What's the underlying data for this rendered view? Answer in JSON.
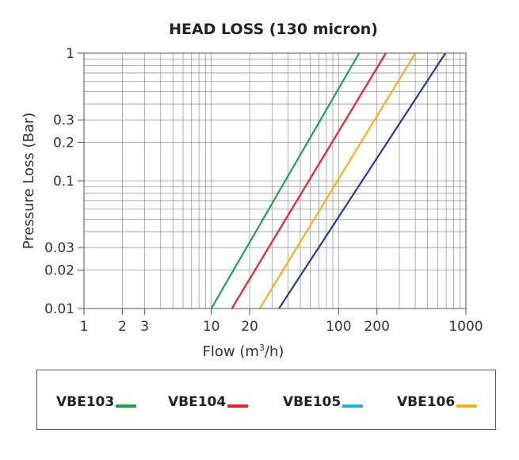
{
  "chart_data": {
    "type": "line",
    "title": "HEAD LOSS (130 micron)",
    "xlabel": "Flow (m³/h)",
    "ylabel": "Pressure Loss (Bar)",
    "x_scale": "log",
    "y_scale": "log",
    "xlim": [
      1,
      1000
    ],
    "ylim": [
      0.01,
      1
    ],
    "grid": true,
    "x_ticks": [
      {
        "value": 1,
        "label": "1"
      },
      {
        "value": 2,
        "label": "2"
      },
      {
        "value": 3,
        "label": "3"
      },
      {
        "value": 10,
        "label": "10"
      },
      {
        "value": 20,
        "label": "20"
      },
      {
        "value": 100,
        "label": "100"
      },
      {
        "value": 200,
        "label": "200"
      },
      {
        "value": 1000,
        "label": "1000"
      }
    ],
    "y_ticks": [
      {
        "value": 0.01,
        "label": "0.01"
      },
      {
        "value": 0.02,
        "label": "0.02"
      },
      {
        "value": 0.03,
        "label": "0.03"
      },
      {
        "value": 0.1,
        "label": "0.1"
      },
      {
        "value": 0.2,
        "label": "0.2"
      },
      {
        "value": 0.3,
        "label": "0.3"
      },
      {
        "value": 1,
        "label": "1"
      }
    ],
    "series": [
      {
        "color": "#22a04b",
        "x": [
          10,
          145
        ],
        "y": [
          0.01,
          1
        ]
      },
      {
        "color": "#e8222b",
        "x": [
          14.5,
          235
        ],
        "y": [
          0.01,
          1
        ]
      },
      {
        "color": "#f5b01a",
        "x": [
          24,
          400
        ],
        "y": [
          0.01,
          1
        ]
      },
      {
        "color": "#2b3990",
        "x": [
          34,
          690
        ],
        "y": [
          0.01,
          1
        ]
      }
    ],
    "legend": {
      "position": "bottom",
      "entries": [
        {
          "label": "VBE103",
          "color": "#22a04b"
        },
        {
          "label": "VBE104",
          "color": "#e8222b"
        },
        {
          "label": "VBE105",
          "color": "#1bb3c5"
        },
        {
          "label": "VBE106",
          "color": "#f5b01a"
        }
      ]
    }
  }
}
